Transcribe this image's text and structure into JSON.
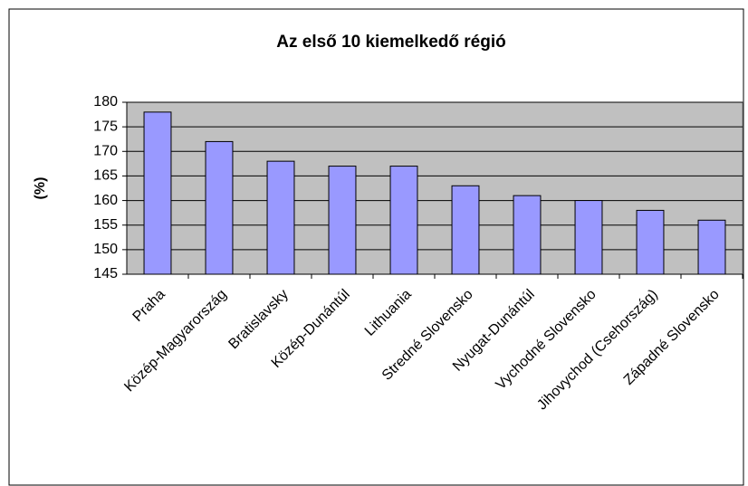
{
  "chart_data": {
    "type": "bar",
    "title": "Az első 10 kiemelkedő régió",
    "y_label": "(%)",
    "categories": [
      "Praha",
      "Közép-Magyarország",
      "Bratislavsky",
      "Közép-Dunántúl",
      "Lithuania",
      "Stredné Slovensko",
      "Nyugat-Dunántúl",
      "Vychodné Slovensko",
      "Jihovychod (Csehország)",
      "Západné Slovensko"
    ],
    "values": [
      178,
      172,
      168,
      167,
      167,
      163,
      161,
      160,
      158,
      156
    ],
    "color": "#9999ff",
    "ylim": [
      145,
      180
    ],
    "yticks": [
      145,
      150,
      155,
      160,
      165,
      170,
      175,
      180
    ],
    "grid": true
  }
}
